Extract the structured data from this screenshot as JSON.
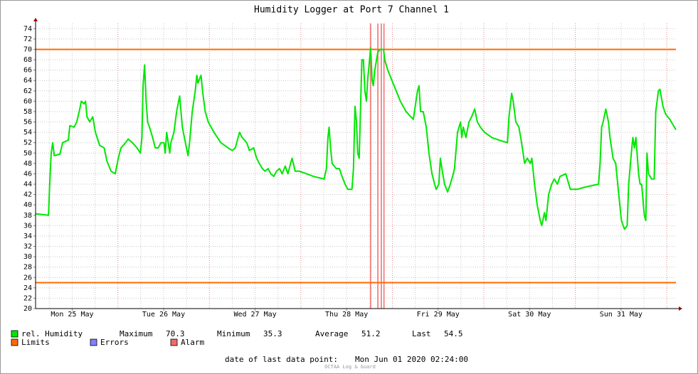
{
  "chart_data": {
    "type": "line",
    "title": "Humidity Logger at Port 7 Channel 1",
    "xlim": [
      0,
      168
    ],
    "xticks": [
      {
        "value": 9.6,
        "label": "Mon 25 May"
      },
      {
        "value": 33.6,
        "label": "Tue 26 May"
      },
      {
        "value": 57.6,
        "label": "Wed 27 May"
      },
      {
        "value": 81.6,
        "label": "Thu 28 May"
      },
      {
        "value": 105.6,
        "label": "Fri 29 May"
      },
      {
        "value": 129.6,
        "label": "Sat 30 May"
      },
      {
        "value": 153.6,
        "label": "Sun 31 May"
      }
    ],
    "ylim": [
      20,
      75
    ],
    "yticks": [
      20,
      22,
      24,
      26,
      28,
      30,
      32,
      34,
      36,
      38,
      40,
      42,
      44,
      46,
      48,
      50,
      52,
      54,
      56,
      58,
      60,
      62,
      64,
      66,
      68,
      70,
      72,
      74
    ],
    "grid": true,
    "series": [
      {
        "name": "rel. Humidity",
        "color": "#00e600",
        "x": [
          0,
          3.4,
          3.7,
          4.1,
          4.5,
          4.9,
          6.4,
          7.1,
          8.6,
          9.0,
          10.1,
          10.8,
          11.6,
          12.0,
          12.7,
          13.1,
          13.5,
          14.2,
          15.0,
          15.7,
          16.8,
          18.0,
          18.7,
          19.8,
          20.9,
          21.7,
          22.4,
          23.6,
          24.3,
          25.4,
          26.6,
          27.5,
          27.9,
          28.2,
          28.6,
          29.0,
          29.4,
          29.9,
          30.7,
          31.4,
          32.2,
          32.9,
          33.7,
          34.0,
          34.4,
          34.8,
          35.2,
          35.5,
          36.3,
          37.0,
          37.8,
          38.5,
          39.3,
          40.0,
          40.4,
          41.1,
          41.9,
          42.3,
          42.6,
          43.4,
          43.8,
          44.5,
          45.3,
          46.8,
          48.6,
          50.5,
          51.6,
          52.4,
          53.5,
          54.2,
          55.4,
          56.1,
          57.2,
          58.0,
          58.7,
          59.5,
          60.2,
          61.0,
          61.7,
          62.5,
          63.2,
          64.0,
          64.7,
          65.5,
          66.2,
          66.9,
          67.3,
          68.1,
          69.2,
          71.1,
          72.9,
          75.7,
          76.3,
          76.7,
          77.0,
          77.4,
          77.8,
          78.9,
          79.7,
          80.4,
          81.2,
          81.9,
          83.0,
          83.4,
          83.8,
          84.2,
          84.5,
          84.9,
          85.6,
          86.0,
          86.4,
          86.8,
          87.1,
          87.5,
          87.9,
          88.3,
          88.6,
          89.0,
          89.8,
          90.5,
          91.3,
          91.6,
          92.4,
          93.5,
          94.6,
          95.7,
          97.2,
          99.1,
          100.2,
          100.6,
          101.0,
          101.7,
          102.5,
          103.2,
          104.0,
          104.7,
          105.1,
          105.8,
          106.2,
          106.6,
          107.3,
          108.1,
          108.8,
          109.6,
          109.9,
          110.7,
          111.5,
          111.8,
          112.2,
          112.9,
          113.7,
          114.4,
          115.2,
          115.9,
          116.7,
          117.8,
          119.7,
          121.6,
          123.8,
          124.2,
          124.9,
          125.3,
          126.0,
          126.8,
          127.5,
          128.3,
          129.0,
          129.8,
          130.2,
          130.9,
          131.6,
          132.4,
          132.8,
          133.5,
          133.9,
          134.6,
          135.4,
          136.1,
          136.9,
          137.6,
          139.1,
          140.3,
          142.1,
          144.0,
          147.7,
          148.1,
          148.5,
          148.9,
          149.6,
          150.3,
          150.7,
          151.5,
          152.2,
          153.0,
          153.7,
          154.5,
          155.2,
          155.6,
          156.3,
          156.7,
          157.1,
          157.5,
          157.8,
          158.2,
          158.6,
          159.0,
          159.7,
          160.1,
          160.4,
          160.8,
          161.6,
          162.3,
          162.7,
          163.4,
          163.8,
          164.6,
          165.3,
          166.4,
          167.6,
          168.0
        ],
        "values": [
          38.3,
          38,
          44,
          50,
          52,
          49.5,
          49.8,
          52,
          52.5,
          55.3,
          55,
          56,
          58.5,
          60,
          59.5,
          60,
          57,
          56,
          57,
          54,
          51.5,
          51,
          48.5,
          46.5,
          46,
          49,
          51,
          52,
          52.7,
          52,
          51,
          50,
          53,
          63,
          67,
          60,
          56,
          55,
          53,
          51,
          51,
          52,
          52,
          50,
          54,
          52,
          50,
          52,
          54,
          58,
          61,
          55,
          52,
          49.5,
          52,
          58,
          62,
          65,
          63.5,
          65,
          62,
          58,
          56,
          54,
          52,
          51,
          50.5,
          51,
          54,
          53,
          52,
          50.5,
          51,
          49,
          48,
          47,
          46.5,
          47,
          46,
          45.5,
          46.5,
          47,
          46,
          47.5,
          46,
          48,
          49,
          46.5,
          46.5,
          46,
          45.5,
          45,
          47,
          53,
          55,
          51,
          48,
          47,
          47,
          45.5,
          44,
          43,
          43,
          47,
          59,
          56,
          50,
          49,
          68,
          68,
          62,
          60,
          64,
          67,
          70.3,
          64,
          63,
          66,
          69.5,
          70,
          70,
          68,
          66,
          64,
          62,
          60,
          58,
          56.5,
          62,
          63,
          58,
          58,
          55,
          50,
          46,
          44,
          43,
          44,
          49,
          47,
          44,
          42.5,
          44,
          46,
          47,
          54,
          56,
          53,
          55,
          53,
          56,
          57,
          58.5,
          56,
          55,
          54,
          53,
          52.5,
          52,
          57,
          61.5,
          60,
          56,
          55,
          52,
          48,
          49,
          48,
          49,
          44,
          40,
          37,
          36,
          38.5,
          37,
          42,
          44,
          45,
          44,
          45.5,
          46,
          43,
          43,
          43.4,
          44,
          48,
          55,
          56,
          58.5,
          56,
          53,
          49,
          48,
          42,
          37,
          35.3,
          36,
          44,
          50,
          53,
          51,
          53,
          50,
          46,
          44,
          44,
          38,
          37,
          50,
          46,
          45,
          45,
          58,
          62,
          62.3,
          59,
          57.5,
          56.5,
          55,
          54.5
        ]
      }
    ],
    "limits": {
      "name": "Limits",
      "color": "#ff6a00",
      "values": [
        70,
        25
      ]
    },
    "errors": {
      "name": "Errors",
      "color": "#7f7fff"
    },
    "alarms": {
      "name": "Alarm",
      "color": "#f06a6a",
      "x": [
        87.9,
        89.8,
        90.7,
        91.4
      ]
    },
    "stats": [
      {
        "label": "Maximum",
        "value": 70.3
      },
      {
        "label": "Minimum",
        "value": 35.3
      },
      {
        "label": "Average",
        "value": 51.2
      },
      {
        "label": "Last",
        "value": 54.5
      }
    ],
    "footer": {
      "label": "date of last data point:",
      "value": "Mon Jun 01 2020 02:24:00"
    },
    "credit": "OCTAA Log & Guard"
  }
}
